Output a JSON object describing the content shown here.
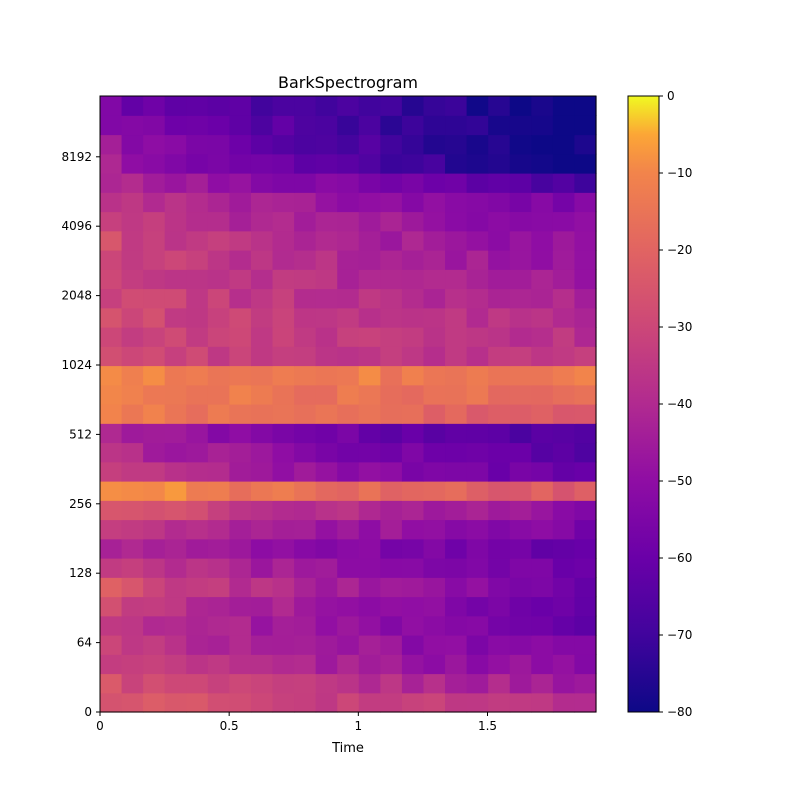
{
  "chart_data": {
    "type": "heatmap",
    "title": "BarkSpectrogram",
    "xlabel": "Time",
    "ylabel": "",
    "xlim": [
      0,
      1.92
    ],
    "x_ticks": [
      0,
      0.5,
      1,
      1.5
    ],
    "x_tick_labels": [
      "0",
      "0.5",
      "1",
      "1.5"
    ],
    "y_scale": "bark (labels in Hz)",
    "y_tick_labels": [
      "0",
      "64",
      "128",
      "256",
      "512",
      "1024",
      "2048",
      "4096",
      "8192"
    ],
    "colormap": "plasma",
    "colorbar": {
      "label": "",
      "range": [
        -80,
        0
      ],
      "ticks": [
        0,
        -10,
        -20,
        -30,
        -40,
        -50,
        -60,
        -70,
        -80
      ],
      "tick_labels": [
        "0",
        "−10",
        "−20",
        "−30",
        "−40",
        "−50",
        "−60",
        "−70",
        "−80"
      ]
    },
    "time_frames": 23,
    "bark_bands": 32,
    "band_level_db_at_onset_and_end": [
      {
        "band": 0,
        "onset": -22,
        "end": -38
      },
      {
        "band": 2,
        "onset": -30,
        "end": -52
      },
      {
        "band": 4,
        "onset": -32,
        "end": -60
      },
      {
        "band": 6,
        "onset": -24,
        "end": -58
      },
      {
        "band": 8,
        "onset": -40,
        "end": -60
      },
      {
        "band": 10,
        "onset": -22,
        "end": -50
      },
      {
        "band": 11,
        "onset": -6,
        "end": -24
      },
      {
        "band": 12,
        "onset": -30,
        "end": -62
      },
      {
        "band": 14,
        "onset": -42,
        "end": -68
      },
      {
        "band": 15,
        "onset": -12,
        "end": -22
      },
      {
        "band": 17,
        "onset": -10,
        "end": -14
      },
      {
        "band": 18,
        "onset": -30,
        "end": -36
      },
      {
        "band": 20,
        "onset": -28,
        "end": -40
      },
      {
        "band": 22,
        "onset": -30,
        "end": -45
      },
      {
        "band": 24,
        "onset": -28,
        "end": -50
      },
      {
        "band": 26,
        "onset": -34,
        "end": -55
      },
      {
        "band": 28,
        "onset": -42,
        "end": -80
      },
      {
        "band": 30,
        "onset": -50,
        "end": -80
      },
      {
        "band": 31,
        "onset": -55,
        "end": -80
      }
    ]
  }
}
